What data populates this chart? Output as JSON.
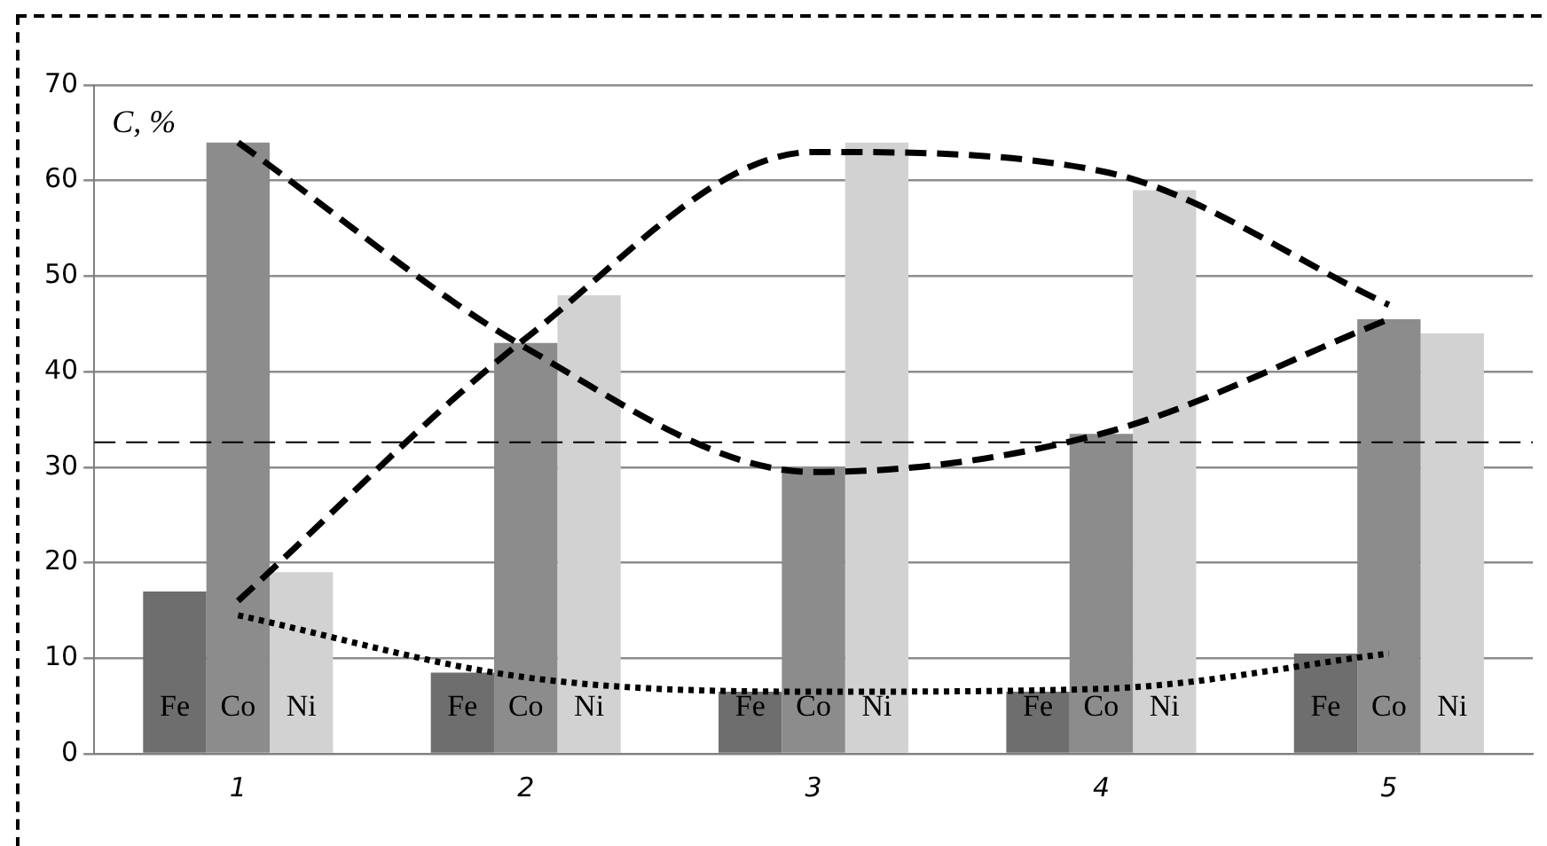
{
  "chart_data": {
    "type": "bar",
    "ylabel": "C, %",
    "categories": [
      "1",
      "2",
      "3",
      "4",
      "5"
    ],
    "ylim": [
      0,
      70
    ],
    "yticks": [
      0,
      10,
      20,
      30,
      40,
      50,
      60,
      70
    ],
    "grid": "y",
    "legend": false,
    "series": [
      {
        "name": "Fe",
        "color": "#6e6e6e",
        "values": [
          17,
          8.5,
          6.5,
          6.5,
          10.5
        ]
      },
      {
        "name": "Co",
        "color": "#8c8c8c",
        "values": [
          64,
          43,
          30,
          33.5,
          45.5
        ]
      },
      {
        "name": "Ni",
        "color": "#d2d2d2",
        "values": [
          19,
          48,
          64,
          59,
          44
        ]
      },
      {
        "type": "line",
        "color": "#000000",
        "line_style": "dotted",
        "values": [
          14.5,
          8,
          6.5,
          6.8,
          10.5
        ]
      },
      {
        "type": "line",
        "color": "#000000",
        "line_style": "dashed",
        "values": [
          64,
          42.5,
          29.5,
          33.5,
          45.5
        ]
      },
      {
        "type": "line",
        "color": "#000000",
        "line_style": "dashed",
        "values": [
          16,
          43.5,
          63,
          61,
          47
        ]
      }
    ],
    "ref_lines": [
      {
        "axis": "y",
        "value": 32.6,
        "color": "#000000",
        "line_style": "dashed"
      }
    ]
  }
}
